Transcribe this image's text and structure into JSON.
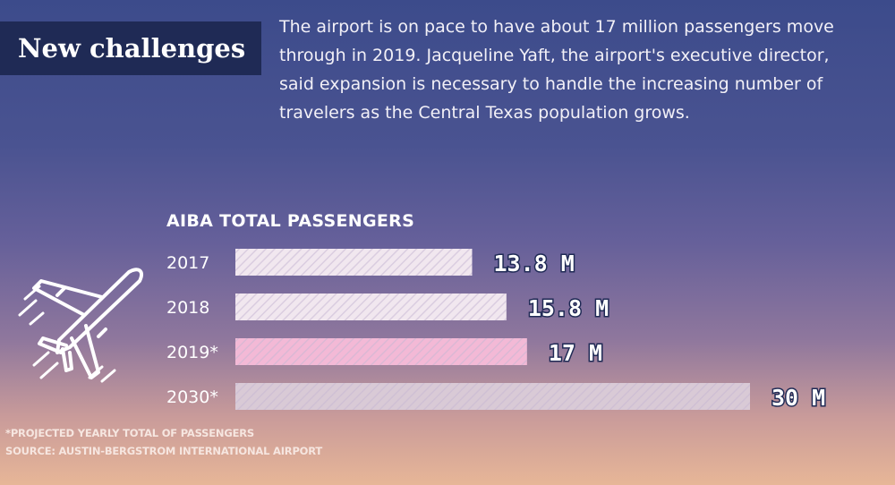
{
  "header": {
    "title": "New challenges",
    "intro": "The airport is on pace to have about 17 million passengers move through in 2019. Jacqueline Yaft, the airport's executive director, said expansion is necessary to handle the increasing number of travelers as the Central Texas population grows."
  },
  "chart_data": {
    "type": "bar",
    "orientation": "horizontal",
    "title": "AIBA TOTAL PASSENGERS",
    "categories": [
      "2017",
      "2018",
      "2019*",
      "2030*"
    ],
    "values": [
      13.8,
      15.8,
      17,
      30
    ],
    "value_labels": [
      "13.8 M",
      "15.8 M",
      "17 M",
      "30 M"
    ],
    "unit": "M",
    "highlight_index": 2,
    "colors": {
      "bar": "#f1e7ef",
      "bar_highlight": "#f3b9d6",
      "bar_last": "#d9cad6",
      "hatch": "#c7b7d3"
    },
    "grid": false,
    "legend": "none"
  },
  "footnotes": {
    "projected": "*PROJECTED YEARLY TOTAL OF PASSENGERS",
    "source": "SOURCE: AUSTIN-BERGSTROM INTERNATIONAL AIRPORT"
  },
  "icons": {
    "plane": "airplane-icon"
  }
}
